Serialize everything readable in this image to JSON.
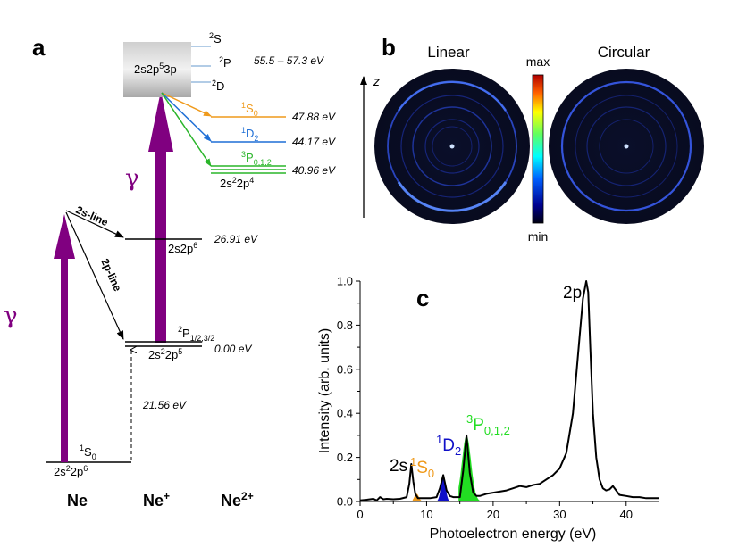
{
  "colors": {
    "purple": "#800080",
    "orange": "#ef9a1c",
    "blue": "#1f6fd6",
    "green": "#2ab52a",
    "peak_blue": "#1010c8",
    "peak_green": "#22dd22"
  },
  "panel_a": {
    "label": "a",
    "photon_symbol": "γ",
    "bottom_labels": [
      "Ne",
      "Ne",
      "Ne"
    ],
    "bottom_sup": [
      "",
      "+",
      "2+"
    ],
    "ground_state": "S",
    "ground_state_sup": "1",
    "ground_state_sub": "0",
    "ground_config": "2s2p",
    "ground_config_sup1": "2",
    "ground_config_sup2": "6",
    "ion_state": "P",
    "ion_state_sup": "2",
    "ion_state_sub": "1/2,3/2",
    "ion_config": "2s2p",
    "ion_config_sup1": "2",
    "ion_config_sup2": "5",
    "ion_energy": "0.00 eV",
    "threshold_energy": "21.56 eV",
    "s_line_label": "2s-line",
    "p_line_label": "2p-line",
    "excited_2s_config": "2s2p",
    "excited_2s_sup": "6",
    "excited_2s_energy": "26.91 eV",
    "resonance_config": "2s2p3p",
    "resonance_config_sup": "5",
    "resonance_terms": [
      "S",
      "P",
      "D"
    ],
    "resonance_terms_sup": "2",
    "resonance_energy": "55.5 – 57.3 eV",
    "final_states": [
      {
        "term": "S",
        "sup": "1",
        "sub": "0",
        "energy": "47.88 eV",
        "color": "#ef9a1c"
      },
      {
        "term": "D",
        "sup": "1",
        "sub": "2",
        "energy": "44.17 eV",
        "color": "#1f6fd6"
      },
      {
        "term": "P",
        "sup": "3",
        "sub": "0,1,2",
        "energy": "40.96 eV",
        "color": "#2ab52a"
      }
    ],
    "dication_config": "2s2p",
    "dication_sup1": "2",
    "dication_sup2": "4"
  },
  "panel_b": {
    "label": "b",
    "left_title": "Linear",
    "right_title": "Circular",
    "axis_label": "z",
    "colorbar_max": "max",
    "colorbar_min": "min"
  },
  "chart_data": {
    "type": "line",
    "panel_label": "c",
    "xlabel": "Photoelectron energy (eV)",
    "ylabel": "Intensity (arb. units)",
    "xlim": [
      0,
      45
    ],
    "ylim": [
      0,
      1.0
    ],
    "xticks": [
      0,
      10,
      20,
      30,
      40
    ],
    "yticks": [
      "0.0",
      "0.2",
      "0.4",
      "0.6",
      "0.8",
      "1.0"
    ],
    "grid": false,
    "series": [
      {
        "x": [
          0,
          1,
          2,
          2.5,
          3,
          3.5,
          4,
          5,
          6,
          7,
          7.4,
          7.7,
          8.0,
          8.3,
          8.7,
          9.5,
          10.5,
          11.5,
          12.0,
          12.5,
          13.0,
          13.5,
          14,
          15,
          15.5,
          16.0,
          16.5,
          17,
          17.5,
          18,
          19,
          20,
          21,
          22,
          23,
          24,
          25,
          26,
          27,
          28,
          29,
          30,
          31,
          32,
          33,
          33.5,
          34.0,
          34.3,
          34.6,
          35.0,
          35.5,
          36,
          36.5,
          37,
          37.5,
          38,
          38.5,
          39,
          40,
          41,
          42,
          43,
          44,
          45
        ],
        "y": [
          0.005,
          0.008,
          0.012,
          0.005,
          0.02,
          0.01,
          0.012,
          0.01,
          0.012,
          0.02,
          0.08,
          0.17,
          0.09,
          0.035,
          0.015,
          0.015,
          0.015,
          0.02,
          0.06,
          0.12,
          0.05,
          0.025,
          0.02,
          0.02,
          0.14,
          0.3,
          0.13,
          0.04,
          0.025,
          0.025,
          0.035,
          0.04,
          0.045,
          0.05,
          0.06,
          0.07,
          0.065,
          0.075,
          0.08,
          0.1,
          0.12,
          0.15,
          0.22,
          0.4,
          0.75,
          0.92,
          1.0,
          0.95,
          0.7,
          0.4,
          0.2,
          0.1,
          0.06,
          0.05,
          0.055,
          0.07,
          0.05,
          0.03,
          0.025,
          0.02,
          0.02,
          0.015,
          0.015,
          0.015
        ]
      }
    ],
    "filled_peaks": [
      {
        "x_range": [
          7.9,
          9.6
        ],
        "center": 8.5,
        "height": 0.035,
        "color": "#ef9a1c"
      },
      {
        "x_range": [
          11.6,
          13.3
        ],
        "center": 12.5,
        "height": 0.12,
        "color": "#1010c8"
      },
      {
        "x_range": [
          14.8,
          18.2
        ],
        "center": 16.0,
        "height": 0.3,
        "color": "#22dd22"
      }
    ],
    "annotations": [
      {
        "text": "2s",
        "sup": "",
        "sub": ""
      },
      {
        "text": "S",
        "sup": "1",
        "sub": "0"
      },
      {
        "text": "D",
        "sup": "1",
        "sub": "2"
      },
      {
        "text": "P",
        "sup": "3",
        "sub": "0,1,2"
      },
      {
        "text": "2p",
        "sup": "",
        "sub": ""
      }
    ]
  }
}
